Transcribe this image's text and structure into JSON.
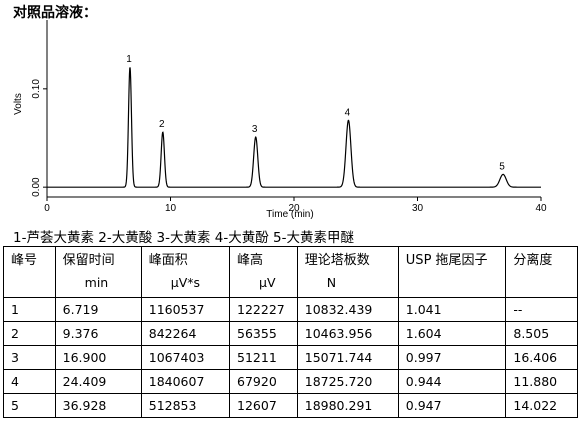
{
  "title": "对照品溶液：",
  "chart_data": {
    "type": "line",
    "xlabel": "Time (min)",
    "ylabel": "Volts",
    "xlim": [
      0,
      40
    ],
    "ylim": [
      -0.01,
      0.17
    ],
    "xticks": [
      0,
      10,
      20,
      30,
      40
    ],
    "yticks": [
      0.0,
      0.1
    ],
    "ytick_labels": [
      "0.00",
      "0.10"
    ],
    "baseline": 0.0,
    "peaks": [
      {
        "label": "1",
        "x": 6.719,
        "height": 0.122
      },
      {
        "label": "2",
        "x": 9.376,
        "height": 0.056
      },
      {
        "label": "3",
        "x": 16.9,
        "height": 0.051
      },
      {
        "label": "4",
        "x": 24.409,
        "height": 0.068
      },
      {
        "label": "5",
        "x": 36.928,
        "height": 0.013
      }
    ],
    "legend_text": "1-芦荟大黄素 2-大黄酸 3-大黄素 4-大黄酚 5-大黄素甲醚",
    "color": "#000000"
  },
  "table": {
    "headers": [
      {
        "name": "峰号",
        "unit": ""
      },
      {
        "name": "保留时间",
        "unit": "min"
      },
      {
        "name": "峰面积",
        "unit": "μV*s"
      },
      {
        "name": "峰高",
        "unit": "μV"
      },
      {
        "name": "理论塔板数",
        "unit": "N"
      },
      {
        "name": "USP 拖尾因子",
        "unit": ""
      },
      {
        "name": "分离度",
        "unit": ""
      }
    ],
    "rows": [
      [
        "1",
        "6.719",
        "1160537",
        "122227",
        "10832.439",
        "1.041",
        "--"
      ],
      [
        "2",
        "9.376",
        "842264",
        "56355",
        "10463.956",
        "1.604",
        "8.505"
      ],
      [
        "3",
        "16.900",
        "1067403",
        "51211",
        "15071.744",
        "0.997",
        "16.406"
      ],
      [
        "4",
        "24.409",
        "1840607",
        "67920",
        "18725.720",
        "0.944",
        "11.880"
      ],
      [
        "5",
        "36.928",
        "512853",
        "12607",
        "18980.291",
        "0.947",
        "14.022"
      ]
    ]
  }
}
